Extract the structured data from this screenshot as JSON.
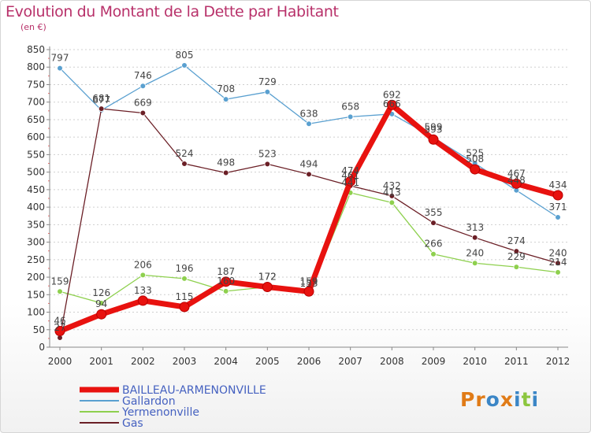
{
  "title": "Evolution du Montant de la Dette par Habitant",
  "subtitle": "(en €)",
  "logo": {
    "text": "Proxiti",
    "letters": [
      {
        "ch": "P",
        "color": "#e07b17"
      },
      {
        "ch": "r",
        "color": "#e07b17"
      },
      {
        "ch": "o",
        "color": "#3b86c6"
      },
      {
        "ch": "x",
        "color": "#e07b17"
      },
      {
        "ch": "i",
        "color": "#3b86c6"
      },
      {
        "ch": "t",
        "color": "#8cc63f"
      },
      {
        "ch": "i",
        "color": "#3b86c6"
      }
    ]
  },
  "chart_data": {
    "type": "line",
    "title": "Evolution du Montant de la Dette par Habitant",
    "subtitle": "(en €)",
    "xlabel": "",
    "ylabel": "",
    "x": [
      2000,
      2001,
      2002,
      2003,
      2004,
      2005,
      2006,
      2007,
      2008,
      2009,
      2010,
      2011,
      2012
    ],
    "ylim": [
      0,
      850
    ],
    "yticks": [
      0,
      50,
      100,
      150,
      200,
      250,
      300,
      350,
      400,
      450,
      500,
      550,
      600,
      650,
      700,
      750,
      800,
      850
    ],
    "grid": "horizontal dashed",
    "legend": "bottom-left",
    "series": [
      {
        "name": "Gallardon",
        "color": "#5aa0d0",
        "values": [
          797,
          677,
          746,
          805,
          708,
          729,
          638,
          658,
          666,
          599,
          525,
          448,
          371
        ],
        "labels": [
          "797",
          "677",
          "746",
          "805",
          "708",
          "729",
          "638",
          "658",
          "666",
          "599",
          "525",
          "448",
          "371"
        ]
      },
      {
        "name": "Yermenonville",
        "color": "#8ed04e",
        "values": [
          159,
          126,
          206,
          196,
          160,
          172,
          153,
          441,
          413,
          266,
          240,
          229,
          214
        ],
        "labels": [
          "159",
          "126",
          "206",
          "196",
          "160",
          "172",
          "153",
          "441",
          "413",
          "266",
          "240",
          "229",
          "214"
        ]
      },
      {
        "name": "Gas",
        "color": "#6b1f26",
        "values": [
          27,
          681,
          669,
          524,
          498,
          523,
          494,
          461,
          432,
          355,
          313,
          274,
          240
        ],
        "labels": [
          "27",
          "681",
          "669",
          "524",
          "498",
          "523",
          "494",
          "461",
          "432",
          "355",
          "313",
          "274",
          "240"
        ]
      },
      {
        "name": "BAILLEAU-ARMENONVILLE",
        "color": "#e8120f",
        "values": [
          46,
          94,
          133,
          115,
          187,
          172,
          159,
          474,
          692,
          593,
          508,
          467,
          434
        ],
        "labels": [
          "46",
          "94",
          "133",
          "115",
          "187",
          "172",
          "159",
          "474",
          "692",
          "593",
          "508",
          "467",
          "434"
        ]
      }
    ],
    "legend_order": [
      "BAILLEAU-ARMENONVILLE",
      "Gallardon",
      "Yermenonville",
      "Gas"
    ]
  }
}
